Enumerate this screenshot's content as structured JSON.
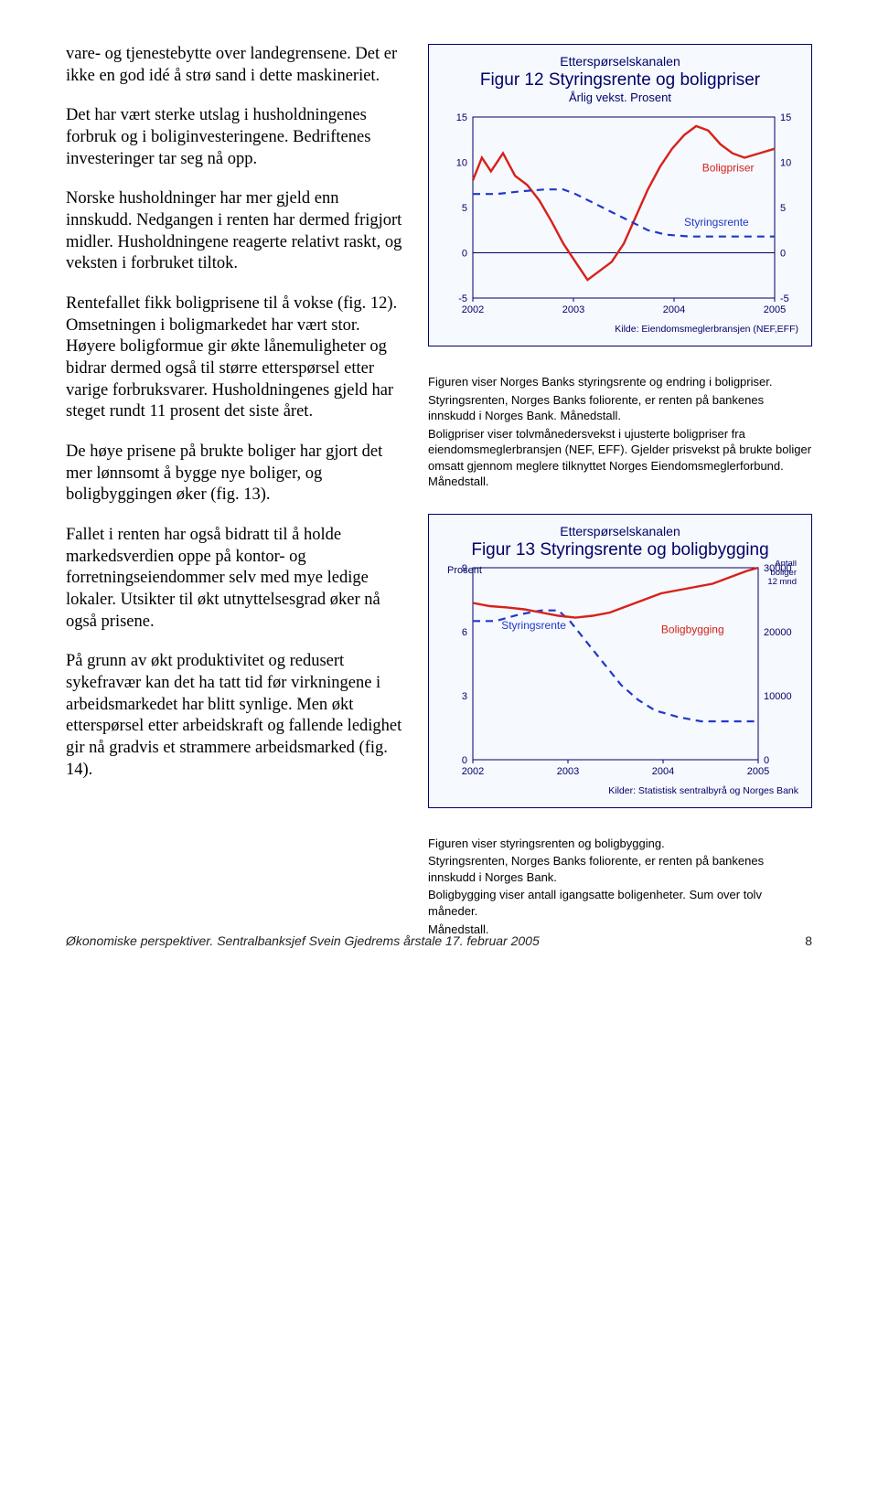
{
  "left": {
    "p1": "vare- og tjenestebytte over landegrensene. Det er ikke en god idé å strø sand i dette maskineriet.",
    "p2": "Det har vært sterke utslag i husholdningenes forbruk og i boliginvesteringene. Bedriftenes investeringer tar seg nå opp.",
    "p3": "Norske husholdninger har mer gjeld enn innskudd. Nedgangen i renten har dermed frigjort midler. Husholdningene reagerte relativt raskt, og veksten i forbruket tiltok.",
    "p4": "Rentefallet fikk boligprisene til å vokse (fig. 12). Omsetningen i boligmarkedet har vært stor. Høyere boligformue gir økte lånemuligheter og bidrar dermed også til større etterspørsel etter varige forbruksvarer. Husholdningenes gjeld har steget rundt 11 prosent det siste året.",
    "p5": "De høye prisene på brukte boliger har gjort det mer lønnsomt å bygge nye boliger, og boligbyggingen øker (fig. 13).",
    "p6": "Fallet i renten har også bidratt til å holde markedsverdien oppe på kontor- og forretningseiendommer selv med mye ledige lokaler. Utsikter til økt utnyttelsesgrad øker nå også prisene.",
    "p7": "På grunn av økt produktivitet og redusert sykefravær kan det ha tatt tid før virkningene i arbeidsmarkedet har blitt synlige. Men økt etterspørsel etter arbeidskraft og fallende ledighet gir nå gradvis et strammere arbeidsmarked (fig. 14)."
  },
  "charts": {
    "c12": {
      "type": "line",
      "pretitle": "Etterspørselskanalen",
      "title": "Figur 12 Styringsrente og boligpriser",
      "subtitle": "Årlig vekst. Prosent",
      "x_labels": [
        "2002",
        "2003",
        "2004",
        "2005"
      ],
      "y_ticks": [
        -5,
        0,
        5,
        10,
        15
      ],
      "ylim": [
        -5,
        15
      ],
      "right_y_ticks": [
        -5,
        0,
        5,
        10,
        15
      ],
      "bg": "#f6f9fd",
      "axis_color": "#00006a",
      "grid_color": "#bcc5e0",
      "series": [
        {
          "name": "Boligpriser",
          "label_text": "Boligpriser",
          "label_xy": [
            0.76,
            0.7
          ],
          "color": "#d8201a",
          "width": 2.4,
          "dash": "",
          "pts": [
            [
              0.0,
              8.0
            ],
            [
              0.03,
              10.5
            ],
            [
              0.06,
              9.0
            ],
            [
              0.1,
              11.0
            ],
            [
              0.14,
              8.5
            ],
            [
              0.18,
              7.5
            ],
            [
              0.22,
              5.8
            ],
            [
              0.26,
              3.5
            ],
            [
              0.3,
              1.0
            ],
            [
              0.34,
              -1.0
            ],
            [
              0.38,
              -3.0
            ],
            [
              0.42,
              -2.0
            ],
            [
              0.46,
              -1.0
            ],
            [
              0.5,
              1.0
            ],
            [
              0.54,
              4.0
            ],
            [
              0.58,
              7.0
            ],
            [
              0.62,
              9.5
            ],
            [
              0.66,
              11.5
            ],
            [
              0.7,
              13.0
            ],
            [
              0.74,
              14.0
            ],
            [
              0.78,
              13.5
            ],
            [
              0.82,
              12.0
            ],
            [
              0.86,
              11.0
            ],
            [
              0.9,
              10.5
            ],
            [
              0.95,
              11.0
            ],
            [
              1.0,
              11.5
            ]
          ]
        },
        {
          "name": "Styringsrente",
          "label_text": "Styringsrente",
          "label_xy": [
            0.7,
            0.4
          ],
          "color": "#2137c8",
          "width": 2.2,
          "dash": "8,6",
          "pts": [
            [
              0.0,
              6.5
            ],
            [
              0.08,
              6.5
            ],
            [
              0.16,
              6.8
            ],
            [
              0.24,
              7.0
            ],
            [
              0.3,
              7.0
            ],
            [
              0.34,
              6.5
            ],
            [
              0.4,
              5.5
            ],
            [
              0.46,
              4.5
            ],
            [
              0.52,
              3.5
            ],
            [
              0.58,
              2.5
            ],
            [
              0.64,
              2.0
            ],
            [
              0.72,
              1.8
            ],
            [
              0.8,
              1.8
            ],
            [
              0.88,
              1.8
            ],
            [
              0.96,
              1.8
            ],
            [
              1.0,
              1.8
            ]
          ]
        }
      ],
      "source": "Kilde: Eiendomsmeglerbransjen (NEF,EFF)"
    },
    "c13": {
      "type": "line-dual",
      "pretitle": "Etterspørselskanalen",
      "title": "Figur 13 Styringsrente og boligbygging",
      "left_axis_title": "Prosent",
      "right_axis_title": "Antall boliger 12 mnd",
      "x_labels": [
        "2002",
        "2003",
        "2004",
        "2005"
      ],
      "y_ticks": [
        0,
        3,
        6,
        9
      ],
      "ylim": [
        0,
        9
      ],
      "right_y_ticks": [
        0,
        10000,
        20000,
        30000
      ],
      "right_ylim": [
        0,
        30000
      ],
      "bg": "#f6f9fd",
      "axis_color": "#00006a",
      "grid_color": "#bcc5e0",
      "series": [
        {
          "name": "Styringsrente",
          "axis": "left",
          "label_text": "Styringsrente",
          "label_xy": [
            0.1,
            0.68
          ],
          "color": "#2137c8",
          "width": 2.2,
          "dash": "8,6",
          "pts": [
            [
              0.0,
              6.5
            ],
            [
              0.08,
              6.5
            ],
            [
              0.16,
              6.8
            ],
            [
              0.24,
              7.0
            ],
            [
              0.3,
              7.0
            ],
            [
              0.34,
              6.5
            ],
            [
              0.4,
              5.5
            ],
            [
              0.46,
              4.5
            ],
            [
              0.52,
              3.5
            ],
            [
              0.58,
              2.8
            ],
            [
              0.64,
              2.3
            ],
            [
              0.72,
              2.0
            ],
            [
              0.8,
              1.8
            ],
            [
              0.88,
              1.8
            ],
            [
              0.96,
              1.8
            ],
            [
              1.0,
              1.8
            ]
          ]
        },
        {
          "name": "Boligbygging",
          "axis": "right",
          "label_text": "Boligbygging",
          "label_xy": [
            0.66,
            0.66
          ],
          "color": "#d8201a",
          "width": 2.4,
          "dash": "",
          "pts": [
            [
              0.0,
              24500
            ],
            [
              0.06,
              24000
            ],
            [
              0.12,
              23800
            ],
            [
              0.18,
              23500
            ],
            [
              0.24,
              23000
            ],
            [
              0.3,
              22500
            ],
            [
              0.36,
              22200
            ],
            [
              0.42,
              22500
            ],
            [
              0.48,
              23000
            ],
            [
              0.54,
              24000
            ],
            [
              0.6,
              25000
            ],
            [
              0.66,
              26000
            ],
            [
              0.72,
              26500
            ],
            [
              0.78,
              27000
            ],
            [
              0.84,
              27500
            ],
            [
              0.9,
              28500
            ],
            [
              0.96,
              29500
            ],
            [
              1.0,
              30000
            ]
          ]
        }
      ],
      "source": "Kilder: Statistisk sentralbyrå og Norges Bank"
    }
  },
  "desc": {
    "d12": [
      "Figuren viser Norges Banks styringsrente og endring i boligpriser.",
      "Styringsrenten, Norges Banks foliorente, er renten på bankenes innskudd i Norges Bank. Månedstall.",
      "Boligpriser viser tolvmånedersvekst i ujusterte boligpriser fra eiendomsmeglerbransjen (NEF, EFF). Gjelder prisvekst på brukte boliger omsatt gjennom meglere tilknyttet Norges Eiendomsmeglerforbund. Månedstall."
    ],
    "d13": [
      "Figuren viser styringsrenten og boligbygging.",
      "Styringsrenten, Norges Banks foliorente, er renten på bankenes innskudd i Norges Bank.",
      "Boligbygging viser antall igangsatte boligenheter. Sum over tolv måneder.",
      "Månedstall."
    ]
  },
  "footer": {
    "left": "Økonomiske perspektiver. Sentralbanksjef Svein Gjedrems årstale 17. februar 2005",
    "page": "8"
  },
  "style": {
    "tick_fontsize": 11,
    "series_label_fontsize": 12
  }
}
